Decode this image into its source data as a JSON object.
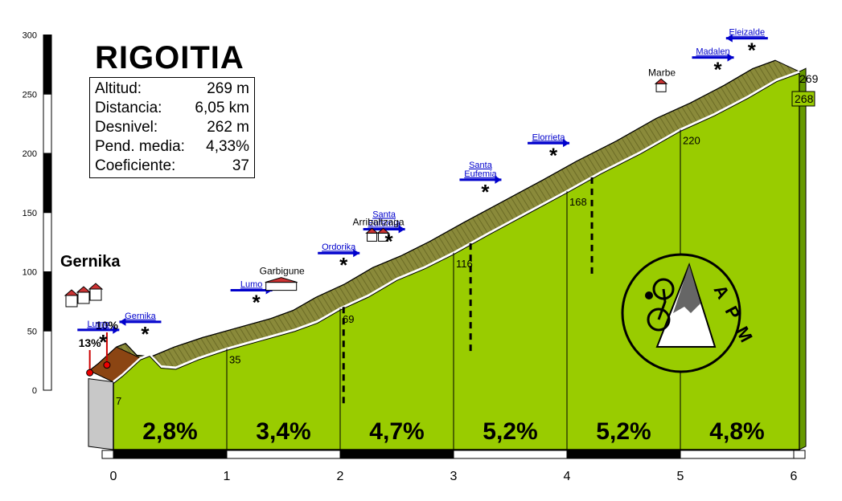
{
  "title": "RIGOITIA",
  "start_town": "Gernika",
  "stats": [
    {
      "label": "Altitud:",
      "value": "269 m"
    },
    {
      "label": "Distancia:",
      "value": "6,05 km"
    },
    {
      "label": "Desnivel:",
      "value": "262 m"
    },
    {
      "label": "Pend. media:",
      "value": "4,33%"
    },
    {
      "label": "Coeficiente:",
      "value": "37"
    }
  ],
  "logo_text": "APM",
  "colors": {
    "fill": "#99cc00",
    "road": "#8a8a3a",
    "road_top": "#cccc66",
    "base": "#c8c8c8",
    "arrow": "#0000cc",
    "steep": "#8b4513"
  },
  "chart_data": {
    "type": "area",
    "xlabel": "",
    "ylabel": "",
    "xlim": [
      0,
      6.05
    ],
    "ylim": [
      0,
      300
    ],
    "x_ticks": [
      "0",
      "1",
      "2",
      "3",
      "4",
      "5",
      "6"
    ],
    "y_ticks": [
      "0",
      "50",
      "100",
      "150",
      "200",
      "250",
      "300"
    ],
    "profile": [
      {
        "x": 0,
        "y": 7
      },
      {
        "x": 0.08,
        "y": 13
      },
      {
        "x": 0.16,
        "y": 20
      },
      {
        "x": 0.24,
        "y": 27
      },
      {
        "x": 0.32,
        "y": 30
      },
      {
        "x": 0.42,
        "y": 20
      },
      {
        "x": 0.55,
        "y": 19
      },
      {
        "x": 0.75,
        "y": 27
      },
      {
        "x": 1.0,
        "y": 35
      },
      {
        "x": 1.3,
        "y": 43
      },
      {
        "x": 1.6,
        "y": 51
      },
      {
        "x": 1.8,
        "y": 58
      },
      {
        "x": 2.0,
        "y": 69
      },
      {
        "x": 2.25,
        "y": 80
      },
      {
        "x": 2.5,
        "y": 94
      },
      {
        "x": 2.75,
        "y": 104
      },
      {
        "x": 3.0,
        "y": 116
      },
      {
        "x": 3.3,
        "y": 132
      },
      {
        "x": 3.65,
        "y": 150
      },
      {
        "x": 4.0,
        "y": 168
      },
      {
        "x": 4.3,
        "y": 184
      },
      {
        "x": 4.65,
        "y": 201
      },
      {
        "x": 5.0,
        "y": 220
      },
      {
        "x": 5.3,
        "y": 233
      },
      {
        "x": 5.6,
        "y": 248
      },
      {
        "x": 5.85,
        "y": 262
      },
      {
        "x": 6.05,
        "y": 269
      }
    ],
    "km_markers": [
      {
        "x": 0,
        "label": "7"
      },
      {
        "x": 1,
        "label": "35"
      },
      {
        "x": 2,
        "label": "69"
      },
      {
        "x": 3,
        "label": "116"
      },
      {
        "x": 4,
        "label": "168"
      },
      {
        "x": 5,
        "label": "220"
      }
    ],
    "segments": [
      {
        "from": 0,
        "to": 1,
        "grade": "2,8%"
      },
      {
        "from": 1,
        "to": 2,
        "grade": "3,4%"
      },
      {
        "from": 2,
        "to": 3,
        "grade": "4,7%"
      },
      {
        "from": 3,
        "to": 4,
        "grade": "5,2%"
      },
      {
        "from": 4,
        "to": 5,
        "grade": "5,2%"
      },
      {
        "from": 5,
        "to": 6,
        "grade": "4,8%"
      }
    ],
    "summit_label": "269",
    "final_label": "268",
    "steep_labels": [
      {
        "x": 0.04,
        "text": "13%"
      },
      {
        "x": 0.12,
        "text": "10%"
      }
    ],
    "places": [
      {
        "x": 1.7,
        "text": "Garbigune",
        "icon": "building"
      },
      {
        "x": 2.55,
        "text": "Arribaltzaga",
        "icon": "houses"
      },
      {
        "x": 5.05,
        "text": "Marbe",
        "icon": "house"
      }
    ],
    "arrows": [
      {
        "x": 0.08,
        "text": "Lumo",
        "dir": "right"
      },
      {
        "x": 0.45,
        "text": "Gernika",
        "dir": "left"
      },
      {
        "x": 1.43,
        "text": "Lumo",
        "dir": "right"
      },
      {
        "x": 2.2,
        "text": "Ordorika",
        "dir": "right"
      },
      {
        "x": 2.6,
        "text": "Santa\nEufemia",
        "dir": "right"
      },
      {
        "x": 3.45,
        "text": "Santa\nEufemia",
        "dir": "right"
      },
      {
        "x": 4.05,
        "text": "Elorrieta",
        "dir": "right"
      },
      {
        "x": 5.5,
        "text": "Madalen",
        "dir": "right"
      },
      {
        "x": 5.8,
        "text": "Eleizalde",
        "dir": "left"
      }
    ]
  }
}
